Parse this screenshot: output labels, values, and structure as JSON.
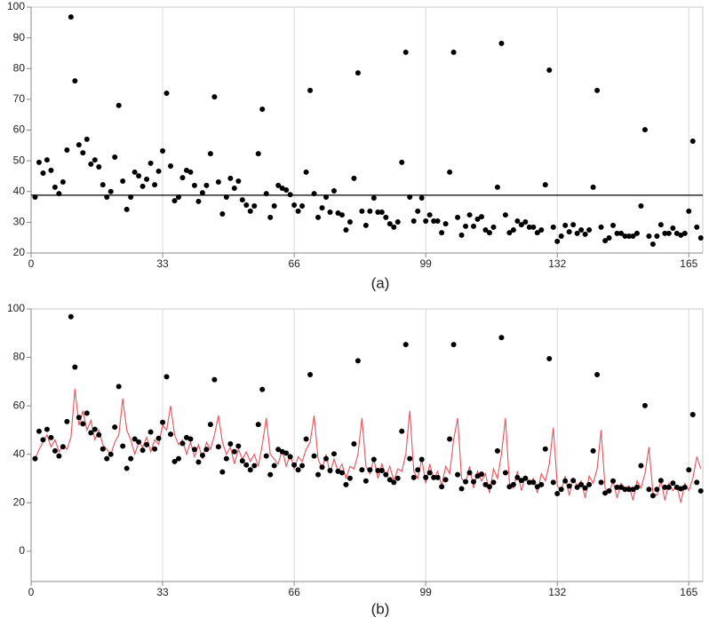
{
  "chart_data": [
    {
      "type": "scatter",
      "caption": "(a)",
      "x": [
        1,
        2,
        3,
        4,
        5,
        6,
        7,
        8,
        9,
        10,
        11,
        12,
        13,
        14,
        15,
        16,
        17,
        18,
        19,
        20,
        21,
        22,
        23,
        24,
        25,
        26,
        27,
        28,
        29,
        30,
        31,
        32,
        33,
        34,
        35,
        36,
        37,
        38,
        39,
        40,
        41,
        42,
        43,
        44,
        45,
        46,
        47,
        48,
        49,
        50,
        51,
        52,
        53,
        54,
        55,
        56,
        57,
        58,
        59,
        60,
        61,
        62,
        63,
        64,
        65,
        66,
        67,
        68,
        69,
        70,
        71,
        72,
        73,
        74,
        75,
        76,
        77,
        78,
        79,
        80,
        81,
        82,
        83,
        84,
        85,
        86,
        87,
        88,
        89,
        90,
        91,
        92,
        93,
        94,
        95,
        96,
        97,
        98,
        99,
        100,
        101,
        102,
        103,
        104,
        105,
        106,
        107,
        108,
        109,
        110,
        111,
        112,
        113,
        114,
        115,
        116,
        117,
        118,
        119,
        120,
        121,
        122,
        123,
        124,
        125,
        126,
        127,
        128,
        129,
        130,
        131,
        132,
        133,
        134,
        135,
        136,
        137,
        138,
        139,
        140,
        141,
        142,
        143,
        144,
        145,
        146,
        147,
        148,
        149,
        150,
        151,
        152,
        153,
        154,
        155,
        156,
        157,
        158,
        159,
        160,
        161,
        162,
        163,
        164,
        165,
        166,
        167,
        168
      ],
      "values": [
        38.2,
        49.5,
        46,
        50.3,
        46.9,
        41.4,
        39.3,
        43.1,
        53.5,
        96.8,
        76,
        55.2,
        52.6,
        57,
        48.9,
        50.3,
        48,
        42.2,
        38.2,
        40,
        51.2,
        68,
        43.4,
        34.2,
        38.2,
        46.3,
        45.1,
        41.7,
        44,
        49.2,
        42.2,
        46.6,
        53.2,
        72,
        48.3,
        37,
        38.2,
        44.5,
        46.9,
        46.3,
        42,
        36.8,
        39.6,
        42,
        52.3,
        70.8,
        43.1,
        32.7,
        38.2,
        44.3,
        41.1,
        43.4,
        37.3,
        35.6,
        33.6,
        35.3,
        52.3,
        66.8,
        39.3,
        31.6,
        35.3,
        42,
        41.1,
        40.5,
        39,
        35.6,
        33.6,
        35.3,
        46.3,
        72.9,
        39.3,
        31.6,
        34.7,
        38.2,
        33.3,
        40.2,
        33,
        32.4,
        27.5,
        30.1,
        44.3,
        78.6,
        33.6,
        29,
        33.6,
        37.9,
        33.3,
        33.3,
        31.6,
        29.5,
        28.4,
        30.1,
        49.5,
        85.3,
        38.2,
        30.4,
        33.6,
        37.9,
        30.4,
        32.4,
        30.4,
        30.4,
        26.6,
        29.5,
        46.3,
        85.3,
        31.6,
        25.8,
        28.7,
        32.4,
        28.7,
        31,
        31.8,
        27.5,
        26.6,
        28.4,
        41.4,
        88.2,
        32.4,
        26.6,
        27.5,
        30.4,
        29.2,
        30.1,
        28.4,
        28.4,
        26.6,
        27.5,
        42.2,
        79.5,
        28.4,
        23.8,
        25.5,
        29,
        26.9,
        29.2,
        26.4,
        27.5,
        26.1,
        27.5,
        41.4,
        72.9,
        28.4,
        24,
        24.9,
        29,
        26.4,
        26.4,
        25.5,
        25.5,
        25.5,
        26.4,
        35.3,
        60.1,
        25.5,
        22.9,
        25.5,
        29.2,
        26.4,
        26.4,
        28.1,
        26.4,
        25.8,
        26.4,
        33.6,
        56.4,
        28.4,
        24.9
      ],
      "color": "#000000",
      "reference_line": 38.8,
      "reference_color": "#000000",
      "xlim": [
        0,
        168.5
      ],
      "ylim": [
        20,
        100
      ],
      "xticks": [
        0,
        33,
        66,
        99,
        132,
        165
      ],
      "yticks": [
        20,
        30,
        40,
        50,
        60,
        70,
        80,
        90,
        100
      ],
      "grid": true
    },
    {
      "type": "scatter",
      "caption": "(b)",
      "x": [
        1,
        2,
        3,
        4,
        5,
        6,
        7,
        8,
        9,
        10,
        11,
        12,
        13,
        14,
        15,
        16,
        17,
        18,
        19,
        20,
        21,
        22,
        23,
        24,
        25,
        26,
        27,
        28,
        29,
        30,
        31,
        32,
        33,
        34,
        35,
        36,
        37,
        38,
        39,
        40,
        41,
        42,
        43,
        44,
        45,
        46,
        47,
        48,
        49,
        50,
        51,
        52,
        53,
        54,
        55,
        56,
        57,
        58,
        59,
        60,
        61,
        62,
        63,
        64,
        65,
        66,
        67,
        68,
        69,
        70,
        71,
        72,
        73,
        74,
        75,
        76,
        77,
        78,
        79,
        80,
        81,
        82,
        83,
        84,
        85,
        86,
        87,
        88,
        89,
        90,
        91,
        92,
        93,
        94,
        95,
        96,
        97,
        98,
        99,
        100,
        101,
        102,
        103,
        104,
        105,
        106,
        107,
        108,
        109,
        110,
        111,
        112,
        113,
        114,
        115,
        116,
        117,
        118,
        119,
        120,
        121,
        122,
        123,
        124,
        125,
        126,
        127,
        128,
        129,
        130,
        131,
        132,
        133,
        134,
        135,
        136,
        137,
        138,
        139,
        140,
        141,
        142,
        143,
        144,
        145,
        146,
        147,
        148,
        149,
        150,
        151,
        152,
        153,
        154,
        155,
        156,
        157,
        158,
        159,
        160,
        161,
        162,
        163,
        164,
        165,
        166,
        167,
        168
      ],
      "values": [
        38.2,
        49.5,
        46,
        50.3,
        46.9,
        41.4,
        39.3,
        43.1,
        53.5,
        96.8,
        76,
        55.2,
        52.6,
        57,
        48.9,
        50.3,
        48,
        42.2,
        38.2,
        40,
        51.2,
        68,
        43.4,
        34.2,
        38.2,
        46.3,
        45.1,
        41.7,
        44,
        49.2,
        42.2,
        46.6,
        53.2,
        72,
        48.3,
        37,
        38.2,
        44.5,
        46.9,
        46.3,
        42,
        36.8,
        39.6,
        42,
        52.3,
        70.8,
        43.1,
        32.7,
        38.2,
        44.3,
        41.1,
        43.4,
        37.3,
        35.6,
        33.6,
        35.3,
        52.3,
        66.8,
        39.3,
        31.6,
        35.3,
        42,
        41.1,
        40.5,
        39,
        35.6,
        33.6,
        35.3,
        46.3,
        72.9,
        39.3,
        31.6,
        34.7,
        38.2,
        33.3,
        40.2,
        33,
        32.4,
        27.5,
        30.1,
        44.3,
        78.6,
        33.6,
        29,
        33.6,
        37.9,
        33.3,
        33.3,
        31.6,
        29.5,
        28.4,
        30.1,
        49.5,
        85.3,
        38.2,
        30.4,
        33.6,
        37.9,
        30.4,
        32.4,
        30.4,
        30.4,
        26.6,
        29.5,
        46.3,
        85.3,
        31.6,
        25.8,
        28.7,
        32.4,
        28.7,
        31,
        31.8,
        27.5,
        26.6,
        28.4,
        41.4,
        88.2,
        32.4,
        26.6,
        27.5,
        30.4,
        29.2,
        30.1,
        28.4,
        28.4,
        26.6,
        27.5,
        42.2,
        79.5,
        28.4,
        23.8,
        25.5,
        29,
        26.9,
        29.2,
        26.4,
        27.5,
        26.1,
        27.5,
        41.4,
        72.9,
        28.4,
        24,
        24.9,
        29,
        26.4,
        26.4,
        25.5,
        25.5,
        25.5,
        26.4,
        35.3,
        60.1,
        25.5,
        22.9,
        25.5,
        29.2,
        26.4,
        26.4,
        28.1,
        26.4,
        25.8,
        26.4,
        33.6,
        56.4,
        28.4,
        24.9
      ],
      "color": "#000000",
      "fit": {
        "color": "#e8505b",
        "values": [
          38,
          42,
          45,
          48,
          43,
          46,
          41,
          44,
          42,
          47,
          67,
          52,
          58,
          50,
          54,
          46,
          50,
          44,
          42,
          40,
          45,
          48,
          63,
          50,
          46,
          40,
          45,
          43,
          47,
          41,
          46,
          44,
          52,
          50,
          60,
          48,
          44,
          46,
          40,
          45,
          39,
          44,
          38,
          45,
          42,
          48,
          56,
          45,
          40,
          43,
          36,
          42,
          38,
          41,
          37,
          40,
          35,
          44,
          55,
          40,
          38,
          36,
          42,
          35,
          40,
          34,
          39,
          37,
          42,
          45,
          56,
          38,
          34,
          40,
          32,
          38,
          33,
          36,
          30,
          35,
          34,
          40,
          55,
          35,
          32,
          38,
          30,
          36,
          31,
          35,
          29,
          34,
          33,
          40,
          58,
          33,
          30,
          38,
          28,
          36,
          30,
          33,
          27,
          35,
          32,
          46,
          55,
          30,
          28,
          35,
          26,
          33,
          29,
          32,
          24,
          34,
          30,
          40,
          55,
          28,
          26,
          33,
          25,
          31,
          28,
          30,
          24,
          32,
          29,
          36,
          51,
          27,
          25,
          31,
          23,
          30,
          27,
          29,
          22,
          31,
          28,
          34,
          50,
          26,
          24,
          29,
          22,
          28,
          26,
          27,
          21,
          29,
          26,
          32,
          43,
          24,
          23,
          29,
          21,
          28,
          25,
          27,
          20,
          28,
          25,
          30,
          39,
          34
        ]
      },
      "xlim": [
        0,
        168.5
      ],
      "ylim": [
        -12.5,
        100
      ],
      "xticks": [
        0,
        33,
        66,
        99,
        132,
        165
      ],
      "yticks": [
        0,
        20,
        40,
        60,
        80,
        100
      ],
      "grid": true
    }
  ]
}
